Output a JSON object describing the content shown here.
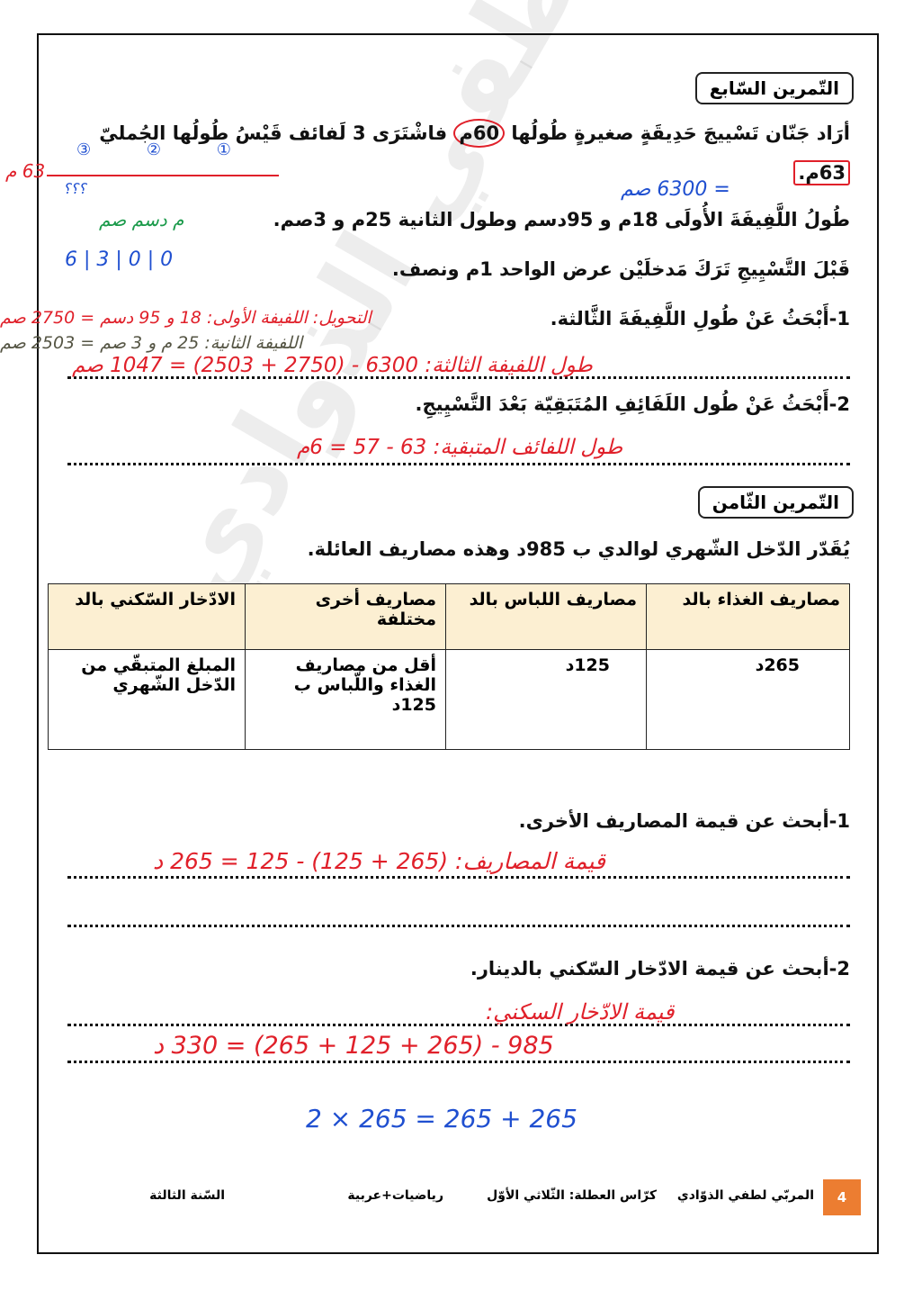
{
  "watermark": "المربي لطفي الذوادي",
  "exercise7": {
    "title": "التّمرين السّابع",
    "line1_a": "أرَاد جَنّان تَسْييجَ حَدِيقَةٍ صغيرةٍ طُولُها ",
    "line1_circled": "60م",
    "line1_b": " فاشْتَرَى 3 لَفائف قَيْسُ طُولُها الجُمليّ",
    "line2_boxed": "63م.",
    "line3": "طُولُ اللَّفِيفَةَ الأُولَى 18م و 95دسم وطول الثانية 25م و 3صم.",
    "line4": "قَبْلَ التَّسْيِيجِ تَرَكَ مَدخلَيْن عرض الواحد 1م ونصف.",
    "q1": "1-أَبْحَثُ عَنْ طُولِ اللَّفِيفَةَ الثَّالثة.",
    "q2": "2-أَبْحَثُ عَنْ طُول اللَفَائِفِ المُتَبَقِيّة بَعْدَ التَّسْيِيجِ."
  },
  "exercise8": {
    "title": "التّمرين الثّامن",
    "intro": "يُقَدّر الدّخل الشّهري لوالدي ب 985د وهذه مصاريف العائلة.",
    "table": {
      "headers": [
        "مصاريف الغذاء بالد",
        "مصاريف اللباس بالد",
        "مصاريف أخرى مختلفة",
        "الادّخار السّكني بالد"
      ],
      "row": [
        "265د",
        "125د",
        "أقل من مصاريف الغذاء واللّباس ب 125د",
        "المبلغ المتبقّي من الدّخل الشّهري"
      ]
    },
    "q1": "1-أبحث عن قيمة المصاريف الأخرى.",
    "q2": "2-أبحث عن قيمة الادّخار السّكني بالدينار."
  },
  "handwriting": [
    "63 م",
    "؟؟؟",
    "③ ② ①",
    "= 6300 صم",
    "م  دسم  صم",
    "6 | 3 | 0 | 0",
    "التحويل: اللفيفة الأولى: 18 و 95 دسم = 2750 صم",
    "اللفيفة الثانية: 25 م و 3 صم = 2503 صم",
    "طول اللفيفة الثالثة: 6300 - (2750 + 2503) = 1047 صم",
    "طول اللفائف المتبقية: 63 - 57 = 6م",
    "قيمة المصاريف: (265 + 125) - 125 = 265 د",
    "قيمة الادّخار السكني:",
    "985 - (265 + 125 + 265) = 330 د",
    "2 × 265 = 265 + 265"
  ],
  "footer": {
    "page": "4",
    "teacher": "المربّي لطفي الذوّادي",
    "booklet": "كرّاس العطلة: الثّلاثي الأوّل",
    "subjects": "رياضيات+عربية",
    "grade": "السّنة الثالثة"
  },
  "colors": {
    "accent": "#ec7d31",
    "table_header": "#fcefd2",
    "ink_red": "#e0202a",
    "ink_blue": "#1f4fd0"
  }
}
